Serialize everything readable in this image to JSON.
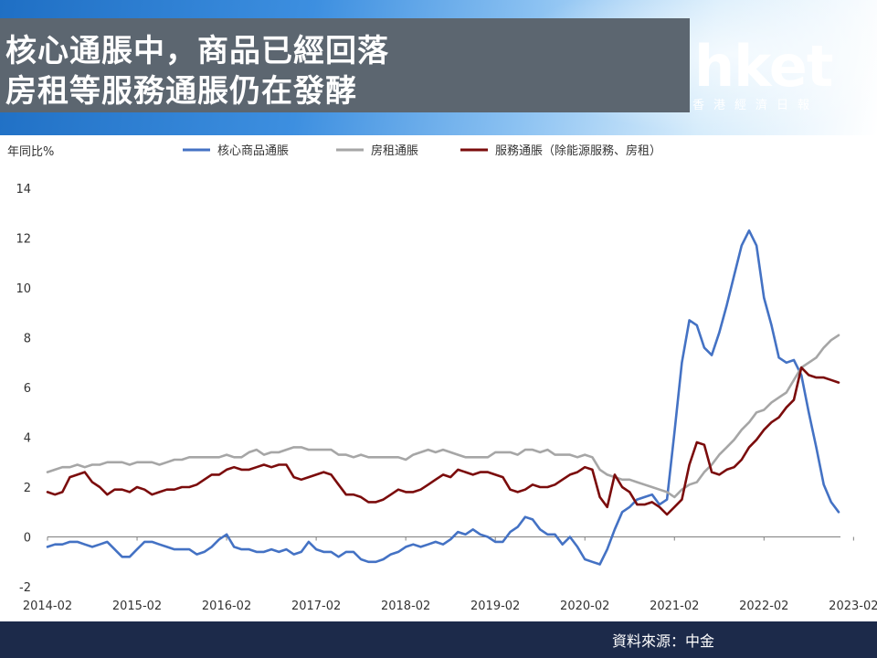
{
  "header": {
    "title_line1": "核心通脹中，商品已經回落",
    "title_line2": "房租等服務通脹仍在發酵",
    "logo": "hket",
    "logo_sub": "香港經濟日報"
  },
  "footer": {
    "source": "資料來源：中金"
  },
  "colors": {
    "core_goods": "#4472c4",
    "rent": "#a6a6a6",
    "services": "#7b0c0c",
    "footer_bg": "#1c2a4a"
  },
  "chart_data": {
    "type": "line",
    "title": "",
    "ylabel": "年同比%",
    "xlabel": "",
    "ylim": [
      -2,
      14
    ],
    "yticks": [
      -2,
      0,
      2,
      4,
      6,
      8,
      10,
      12,
      14
    ],
    "xticklabels": [
      "2014-02",
      "2015-02",
      "2016-02",
      "2017-02",
      "2018-02",
      "2019-02",
      "2020-02",
      "2021-02",
      "2022-02",
      "2023-02"
    ],
    "legend_position": "top",
    "grid": false,
    "x_start": "2014-02",
    "x_end": "2023-02",
    "series": [
      {
        "name": "核心商品通脹",
        "color": "#4472c4",
        "values": [
          -0.4,
          -0.3,
          -0.3,
          -0.2,
          -0.2,
          -0.3,
          -0.4,
          -0.3,
          -0.2,
          -0.5,
          -0.8,
          -0.8,
          -0.5,
          -0.2,
          -0.2,
          -0.3,
          -0.4,
          -0.5,
          -0.5,
          -0.5,
          -0.7,
          -0.6,
          -0.4,
          -0.1,
          0.1,
          -0.4,
          -0.5,
          -0.5,
          -0.6,
          -0.6,
          -0.5,
          -0.6,
          -0.5,
          -0.7,
          -0.6,
          -0.2,
          -0.5,
          -0.6,
          -0.6,
          -0.8,
          -0.6,
          -0.6,
          -0.9,
          -1.0,
          -1.0,
          -0.9,
          -0.7,
          -0.6,
          -0.4,
          -0.3,
          -0.4,
          -0.3,
          -0.2,
          -0.3,
          -0.1,
          0.2,
          0.1,
          0.3,
          0.1,
          0.0,
          -0.2,
          -0.2,
          0.2,
          0.4,
          0.8,
          0.7,
          0.3,
          0.1,
          0.1,
          -0.3,
          0.0,
          -0.4,
          -0.9,
          -1.0,
          -1.1,
          -0.5,
          0.3,
          1.0,
          1.2,
          1.5,
          1.6,
          1.7,
          1.3,
          1.5,
          4.2,
          7.0,
          8.7,
          8.5,
          7.6,
          7.3,
          8.2,
          9.3,
          10.5,
          11.7,
          12.3,
          11.7,
          9.6,
          8.5,
          7.2,
          7.0,
          7.1,
          6.5,
          5.0,
          3.6,
          2.1,
          1.4,
          1.0
        ]
      },
      {
        "name": "房租通脹",
        "color": "#a6a6a6",
        "values": [
          2.6,
          2.7,
          2.8,
          2.8,
          2.9,
          2.8,
          2.9,
          2.9,
          3.0,
          3.0,
          3.0,
          2.9,
          3.0,
          3.0,
          3.0,
          2.9,
          3.0,
          3.1,
          3.1,
          3.2,
          3.2,
          3.2,
          3.2,
          3.2,
          3.3,
          3.2,
          3.2,
          3.4,
          3.5,
          3.3,
          3.4,
          3.4,
          3.5,
          3.6,
          3.6,
          3.5,
          3.5,
          3.5,
          3.5,
          3.3,
          3.3,
          3.2,
          3.3,
          3.2,
          3.2,
          3.2,
          3.2,
          3.2,
          3.1,
          3.3,
          3.4,
          3.5,
          3.4,
          3.5,
          3.4,
          3.3,
          3.2,
          3.2,
          3.2,
          3.2,
          3.4,
          3.4,
          3.4,
          3.3,
          3.5,
          3.5,
          3.4,
          3.5,
          3.3,
          3.3,
          3.3,
          3.2,
          3.3,
          3.2,
          2.7,
          2.5,
          2.4,
          2.3,
          2.3,
          2.2,
          2.1,
          2.0,
          1.9,
          1.8,
          1.6,
          1.9,
          2.1,
          2.2,
          2.6,
          2.9,
          3.3,
          3.6,
          3.9,
          4.3,
          4.6,
          5.0,
          5.1,
          5.4,
          5.6,
          5.8,
          6.3,
          6.8,
          7.0,
          7.2,
          7.6,
          7.9,
          8.1
        ]
      },
      {
        "name": "服務通脹（除能源服務、房租）",
        "color": "#7b0c0c",
        "values": [
          1.8,
          1.7,
          1.8,
          2.4,
          2.5,
          2.6,
          2.2,
          2.0,
          1.7,
          1.9,
          1.9,
          1.8,
          2.0,
          1.9,
          1.7,
          1.8,
          1.9,
          1.9,
          2.0,
          2.0,
          2.1,
          2.3,
          2.5,
          2.5,
          2.7,
          2.8,
          2.7,
          2.7,
          2.8,
          2.9,
          2.8,
          2.9,
          2.9,
          2.4,
          2.3,
          2.4,
          2.5,
          2.6,
          2.5,
          2.1,
          1.7,
          1.7,
          1.6,
          1.4,
          1.4,
          1.5,
          1.7,
          1.9,
          1.8,
          1.8,
          1.9,
          2.1,
          2.3,
          2.5,
          2.4,
          2.7,
          2.6,
          2.5,
          2.6,
          2.6,
          2.5,
          2.4,
          1.9,
          1.8,
          1.9,
          2.1,
          2.0,
          2.0,
          2.1,
          2.3,
          2.5,
          2.6,
          2.8,
          2.7,
          1.6,
          1.2,
          2.5,
          2.0,
          1.8,
          1.3,
          1.3,
          1.4,
          1.2,
          0.9,
          1.2,
          1.5,
          2.9,
          3.8,
          3.7,
          2.6,
          2.5,
          2.7,
          2.8,
          3.1,
          3.6,
          3.9,
          4.3,
          4.6,
          4.8,
          5.2,
          5.5,
          6.8,
          6.5,
          6.4,
          6.4,
          6.3,
          6.2
        ]
      }
    ]
  }
}
